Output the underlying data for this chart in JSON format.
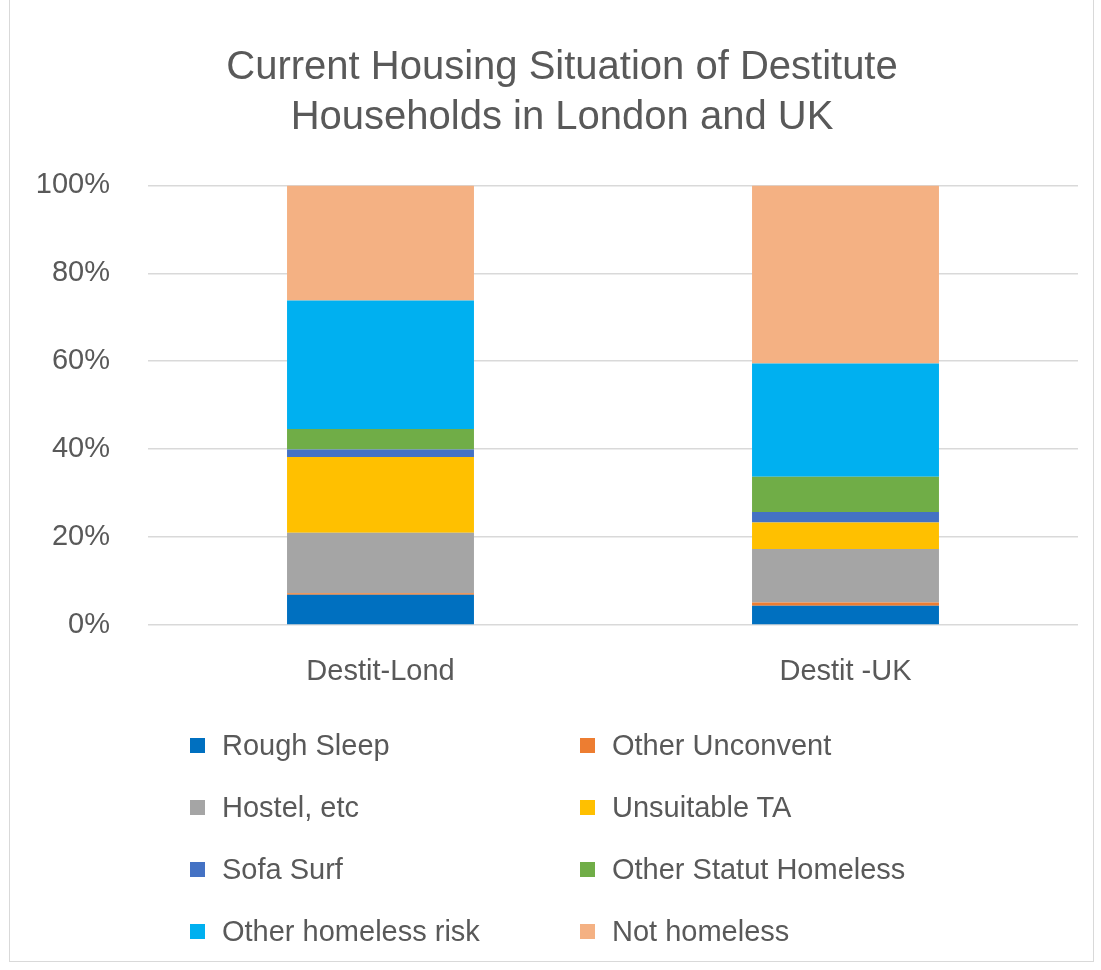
{
  "chart_data": {
    "type": "bar",
    "title": "Current Housing Situation of Destitute Households in London and UK",
    "categories": [
      "Destit-Lond",
      "Destit -UK"
    ],
    "series": [
      {
        "name": "Rough Sleep",
        "color": "#0070c0",
        "values": [
          6.9,
          4.4
        ]
      },
      {
        "name": "Other Unconvent",
        "color": "#ed7d31",
        "values": [
          0.3,
          0.7
        ]
      },
      {
        "name": "Hostel, etc",
        "color": "#a5a5a5",
        "values": [
          13.8,
          12.2
        ]
      },
      {
        "name": "Unsuitable TA",
        "color": "#ffc000",
        "values": [
          17.2,
          6.0
        ]
      },
      {
        "name": "Sofa Surf",
        "color": "#4472c4",
        "values": [
          1.7,
          2.4
        ]
      },
      {
        "name": "Other Statut Homeless",
        "color": "#70ad47",
        "values": [
          4.7,
          8.0
        ]
      },
      {
        "name": "Other homeless risk",
        "color": "#00b0f0",
        "values": [
          29.2,
          25.8
        ]
      },
      {
        "name": "Not homeless",
        "color": "#f4b183",
        "values": [
          26.2,
          40.5
        ]
      }
    ],
    "stacked": true,
    "ylim": [
      0,
      100
    ],
    "yticks": [
      {
        "value": 0,
        "label": "0%"
      },
      {
        "value": 20,
        "label": "20%"
      },
      {
        "value": 40,
        "label": "40%"
      },
      {
        "value": 60,
        "label": "60%"
      },
      {
        "value": 80,
        "label": "80%"
      },
      {
        "value": 100,
        "label": "100%"
      }
    ],
    "grid": "y",
    "legend": "bottom"
  }
}
